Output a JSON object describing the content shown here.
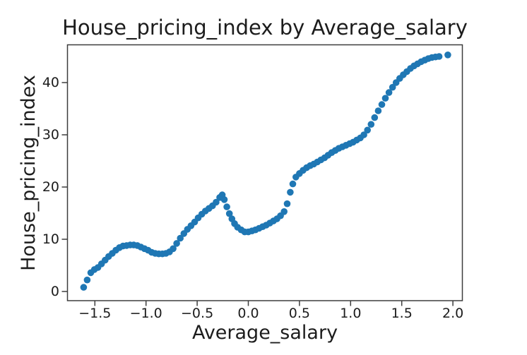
{
  "figure": {
    "background": "#ffffff",
    "text_color": "#1c1c1c",
    "spine_color": "#3d3d3d"
  },
  "chart_data": {
    "type": "scatter",
    "title": "House_pricing_index by Average_salary",
    "xlabel": "Average_salary",
    "ylabel": "House_pricing_index",
    "marker_color": "#1f77b4",
    "grid": false,
    "legend": "none",
    "xlim": [
      -1.77,
      2.1
    ],
    "ylim": [
      -1.8,
      47.3
    ],
    "x_ticks": {
      "values": [
        -1.5,
        -1.0,
        -0.5,
        0.0,
        0.5,
        1.0,
        1.5,
        2.0
      ],
      "labels": [
        "−1.5",
        "−1.0",
        "−0.5",
        "0.0",
        "0.5",
        "1.0",
        "1.5",
        "2.0"
      ]
    },
    "y_ticks": {
      "values": [
        0,
        10,
        20,
        30,
        40
      ],
      "labels": [
        "0",
        "10",
        "20",
        "30",
        "40"
      ]
    },
    "points": [
      [
        -1.61,
        0.8
      ],
      [
        -1.575,
        2.2
      ],
      [
        -1.54,
        3.6
      ],
      [
        -1.505,
        4.2
      ],
      [
        -1.47,
        4.6
      ],
      [
        -1.435,
        5.3
      ],
      [
        -1.4,
        6.0
      ],
      [
        -1.365,
        6.7
      ],
      [
        -1.33,
        7.3
      ],
      [
        -1.295,
        7.9
      ],
      [
        -1.26,
        8.4
      ],
      [
        -1.225,
        8.7
      ],
      [
        -1.19,
        8.8
      ],
      [
        -1.155,
        8.9
      ],
      [
        -1.12,
        8.9
      ],
      [
        -1.085,
        8.8
      ],
      [
        -1.05,
        8.5
      ],
      [
        -1.015,
        8.2
      ],
      [
        -0.98,
        7.9
      ],
      [
        -0.945,
        7.5
      ],
      [
        -0.91,
        7.3
      ],
      [
        -0.875,
        7.2
      ],
      [
        -0.84,
        7.2
      ],
      [
        -0.805,
        7.3
      ],
      [
        -0.77,
        7.6
      ],
      [
        -0.735,
        8.2
      ],
      [
        -0.7,
        9.2
      ],
      [
        -0.665,
        10.2
      ],
      [
        -0.63,
        11.1
      ],
      [
        -0.595,
        11.9
      ],
      [
        -0.56,
        12.6
      ],
      [
        -0.525,
        13.3
      ],
      [
        -0.49,
        14.1
      ],
      [
        -0.455,
        14.8
      ],
      [
        -0.42,
        15.4
      ],
      [
        -0.385,
        15.9
      ],
      [
        -0.35,
        16.4
      ],
      [
        -0.315,
        17.1
      ],
      [
        -0.28,
        18.0
      ],
      [
        -0.255,
        18.5
      ],
      [
        -0.235,
        17.6
      ],
      [
        -0.21,
        16.2
      ],
      [
        -0.185,
        14.9
      ],
      [
        -0.16,
        13.9
      ],
      [
        -0.135,
        13.0
      ],
      [
        -0.105,
        12.3
      ],
      [
        -0.07,
        11.8
      ],
      [
        -0.035,
        11.4
      ],
      [
        0.0,
        11.4
      ],
      [
        0.035,
        11.6
      ],
      [
        0.07,
        11.8
      ],
      [
        0.105,
        12.1
      ],
      [
        0.14,
        12.4
      ],
      [
        0.175,
        12.7
      ],
      [
        0.21,
        13.1
      ],
      [
        0.245,
        13.5
      ],
      [
        0.28,
        13.9
      ],
      [
        0.315,
        14.5
      ],
      [
        0.35,
        15.3
      ],
      [
        0.38,
        16.8
      ],
      [
        0.41,
        19.0
      ],
      [
        0.435,
        20.6
      ],
      [
        0.465,
        21.9
      ],
      [
        0.5,
        22.6
      ],
      [
        0.535,
        23.2
      ],
      [
        0.57,
        23.7
      ],
      [
        0.605,
        24.1
      ],
      [
        0.64,
        24.4
      ],
      [
        0.675,
        24.8
      ],
      [
        0.71,
        25.2
      ],
      [
        0.745,
        25.6
      ],
      [
        0.78,
        26.1
      ],
      [
        0.815,
        26.6
      ],
      [
        0.85,
        27.0
      ],
      [
        0.885,
        27.4
      ],
      [
        0.92,
        27.7
      ],
      [
        0.955,
        28.0
      ],
      [
        0.99,
        28.3
      ],
      [
        1.025,
        28.6
      ],
      [
        1.06,
        29.0
      ],
      [
        1.095,
        29.4
      ],
      [
        1.13,
        30.0
      ],
      [
        1.165,
        30.9
      ],
      [
        1.2,
        32.0
      ],
      [
        1.235,
        33.3
      ],
      [
        1.27,
        34.6
      ],
      [
        1.305,
        35.8
      ],
      [
        1.34,
        37.0
      ],
      [
        1.375,
        38.1
      ],
      [
        1.41,
        39.1
      ],
      [
        1.445,
        40.0
      ],
      [
        1.48,
        40.8
      ],
      [
        1.515,
        41.5
      ],
      [
        1.55,
        42.1
      ],
      [
        1.585,
        42.7
      ],
      [
        1.62,
        43.2
      ],
      [
        1.655,
        43.6
      ],
      [
        1.69,
        44.0
      ],
      [
        1.725,
        44.3
      ],
      [
        1.76,
        44.6
      ],
      [
        1.795,
        44.8
      ],
      [
        1.83,
        44.9
      ],
      [
        1.865,
        45.0
      ],
      [
        1.95,
        45.3
      ]
    ]
  }
}
